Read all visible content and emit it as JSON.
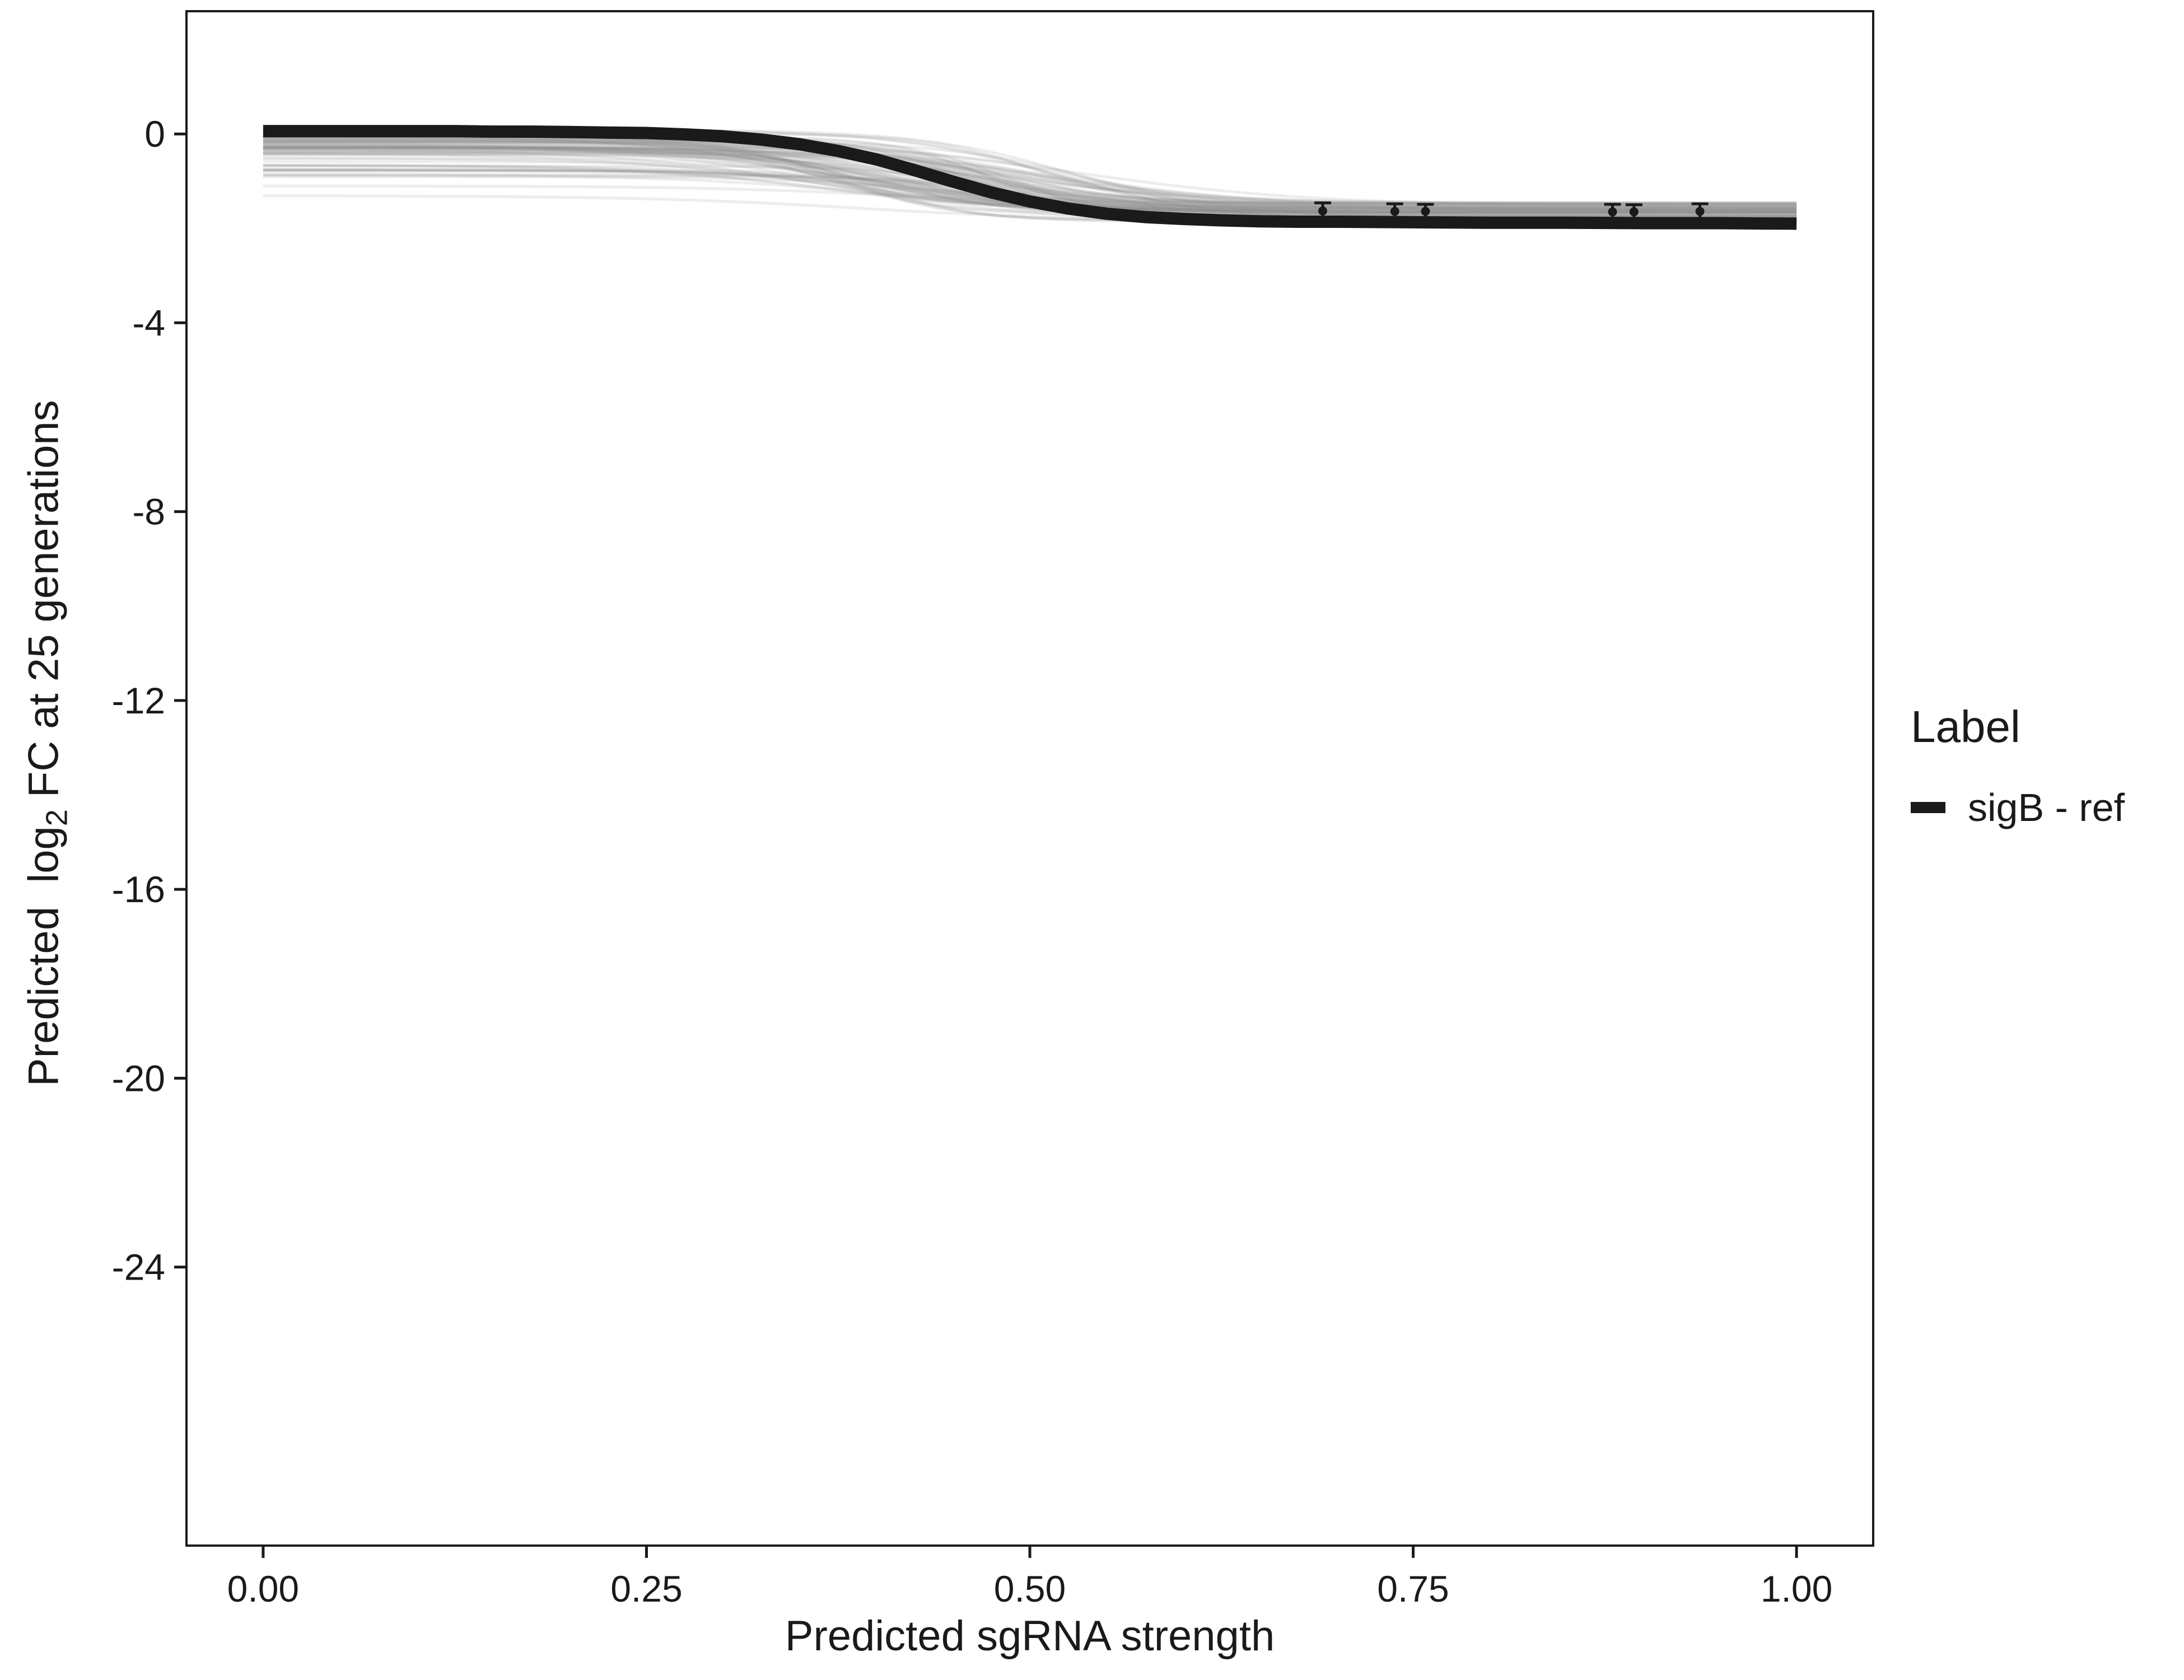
{
  "chart_data": {
    "type": "line",
    "title": "",
    "xlabel": "Predicted sgRNA strength",
    "ylabel_parts": {
      "pre": "Predicted  log",
      "sub": "2",
      "post": " FC at 25 generations"
    },
    "xlim": [
      -0.05,
      1.05
    ],
    "ylim": [
      -29.9,
      2.6
    ],
    "x_ticks": [
      {
        "value": 0.0,
        "label": "0.00"
      },
      {
        "value": 0.25,
        "label": "0.25"
      },
      {
        "value": 0.5,
        "label": "0.50"
      },
      {
        "value": 0.75,
        "label": "0.75"
      },
      {
        "value": 1.0,
        "label": "1.00"
      }
    ],
    "y_ticks": [
      {
        "value": 0,
        "label": "0"
      },
      {
        "value": -4,
        "label": "-4"
      },
      {
        "value": -8,
        "label": "-8"
      },
      {
        "value": -12,
        "label": "-12"
      },
      {
        "value": -16,
        "label": "-16"
      },
      {
        "value": -20,
        "label": "-20"
      },
      {
        "value": -24,
        "label": "-24"
      }
    ],
    "grid": false,
    "panel_border": true,
    "background": "#ffffff",
    "text_color": "#1a1a1a",
    "legend": {
      "title": "Label",
      "position": "right",
      "items": [
        {
          "label": "sigB - ref",
          "color": "#1a1a1a",
          "type": "line"
        }
      ]
    },
    "series": [
      {
        "name": "sigB - ref",
        "type": "line",
        "color": "#1a1a1a",
        "width": 22,
        "points": [
          [
            0.0,
            0.06
          ],
          [
            0.025,
            0.06
          ],
          [
            0.05,
            0.06
          ],
          [
            0.075,
            0.06
          ],
          [
            0.1,
            0.06
          ],
          [
            0.125,
            0.06
          ],
          [
            0.15,
            0.05
          ],
          [
            0.175,
            0.05
          ],
          [
            0.2,
            0.04
          ],
          [
            0.225,
            0.03
          ],
          [
            0.25,
            0.02
          ],
          [
            0.275,
            -0.01
          ],
          [
            0.3,
            -0.05
          ],
          [
            0.325,
            -0.12
          ],
          [
            0.35,
            -0.22
          ],
          [
            0.375,
            -0.36
          ],
          [
            0.4,
            -0.54
          ],
          [
            0.425,
            -0.77
          ],
          [
            0.45,
            -1.01
          ],
          [
            0.475,
            -1.24
          ],
          [
            0.5,
            -1.43
          ],
          [
            0.525,
            -1.58
          ],
          [
            0.55,
            -1.69
          ],
          [
            0.575,
            -1.76
          ],
          [
            0.6,
            -1.8
          ],
          [
            0.625,
            -1.83
          ],
          [
            0.65,
            -1.85
          ],
          [
            0.675,
            -1.86
          ],
          [
            0.7,
            -1.86
          ],
          [
            0.75,
            -1.87
          ],
          [
            0.8,
            -1.88
          ],
          [
            0.85,
            -1.88
          ],
          [
            0.9,
            -1.89
          ],
          [
            0.95,
            -1.89
          ],
          [
            1.0,
            -1.9
          ]
        ]
      }
    ],
    "ensemble": {
      "name": "individual-fit-curves",
      "count": 90,
      "color": "#909090",
      "opacity": 0.16,
      "width": 5,
      "seed": 11,
      "start_range": [
        -1.6,
        0.1
      ],
      "start_bias_exponent": 0.3,
      "end_range": [
        -1.9,
        -1.45
      ],
      "midpoint_range": [
        0.36,
        0.54
      ],
      "slope_range": [
        0.03,
        0.08
      ]
    },
    "error_points": {
      "color": "#1a1a1a",
      "points": [
        {
          "x": 0.691,
          "y": -1.63,
          "err": 0.17
        },
        {
          "x": 0.738,
          "y": -1.64,
          "err": 0.16
        },
        {
          "x": 0.758,
          "y": -1.64,
          "err": 0.15
        },
        {
          "x": 0.88,
          "y": -1.65,
          "err": 0.16
        },
        {
          "x": 0.894,
          "y": -1.65,
          "err": 0.15
        },
        {
          "x": 0.937,
          "y": -1.64,
          "err": 0.16
        }
      ]
    }
  }
}
